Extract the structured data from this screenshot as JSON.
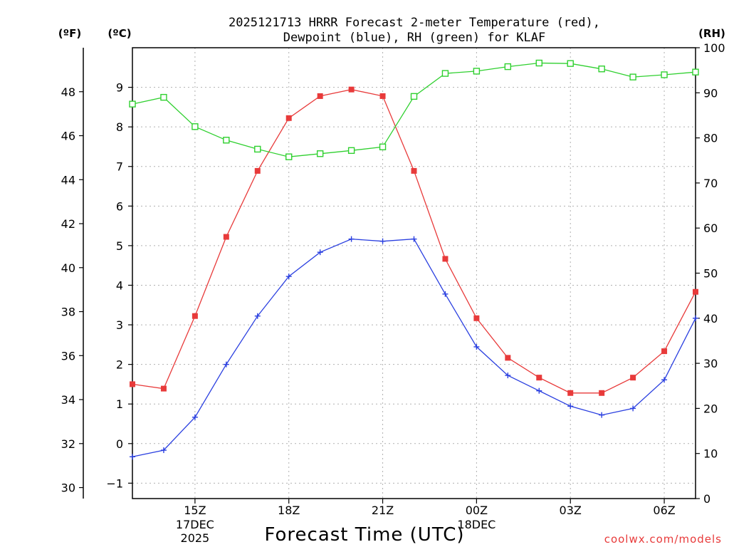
{
  "chart_data": {
    "type": "line",
    "title_line1": "2025121713 HRRR Forecast 2-meter Temperature (red),",
    "title_line2": "Dewpoint (blue), RH (green) for KLAF",
    "xlabel": "Forecast Time (UTC)",
    "watermark": "coolwx.com/models",
    "axis_unit_f": "(ºF)",
    "axis_unit_c": "(ºC)",
    "axis_unit_rh": "(RH)",
    "x_hours": [
      13,
      14,
      15,
      16,
      17,
      18,
      19,
      20,
      21,
      22,
      23,
      24,
      25,
      26,
      27,
      28,
      29,
      30,
      31
    ],
    "xlim": [
      13,
      31
    ],
    "x_ticks": [
      {
        "hour": 15,
        "label": "15Z",
        "sub1": "17DEC",
        "sub2": "2025"
      },
      {
        "hour": 18,
        "label": "18Z"
      },
      {
        "hour": 21,
        "label": "21Z"
      },
      {
        "hour": 24,
        "label": "00Z",
        "sub1": "18DEC"
      },
      {
        "hour": 27,
        "label": "03Z"
      },
      {
        "hour": 30,
        "label": "06Z"
      }
    ],
    "f_axis": {
      "ylim": [
        29.5,
        50.0
      ],
      "ticks": [
        30,
        32,
        34,
        36,
        38,
        40,
        42,
        44,
        46,
        48
      ]
    },
    "c_axis": {
      "ticks": [
        -1,
        0,
        1,
        2,
        3,
        4,
        5,
        6,
        7,
        8,
        9
      ]
    },
    "rh_axis": {
      "ylim": [
        0,
        100
      ],
      "ticks": [
        0,
        10,
        20,
        30,
        40,
        50,
        60,
        70,
        80,
        90,
        100
      ]
    },
    "series": [
      {
        "name": "Temperature (ºF)",
        "axis": "f",
        "color": "#e83a3a",
        "marker": "filled-square",
        "values": [
          34.7,
          34.5,
          37.8,
          41.4,
          44.4,
          46.8,
          47.8,
          48.1,
          47.8,
          44.4,
          40.4,
          37.7,
          35.9,
          35.0,
          34.3,
          34.3,
          35.0,
          36.2,
          38.9
        ]
      },
      {
        "name": "Dewpoint (ºF)",
        "axis": "f",
        "color": "#2a3fe0",
        "marker": "plus",
        "values": [
          31.4,
          31.7,
          33.2,
          35.6,
          37.8,
          39.6,
          40.7,
          41.3,
          41.2,
          41.3,
          38.8,
          36.4,
          35.1,
          34.4,
          33.7,
          33.3,
          33.6,
          34.9,
          37.7
        ]
      },
      {
        "name": "Relative Humidity (%)",
        "axis": "rh",
        "color": "#2fd02f",
        "marker": "open-square",
        "values": [
          87.5,
          89.0,
          82.5,
          79.5,
          77.5,
          75.8,
          76.5,
          77.2,
          78.0,
          89.2,
          94.3,
          94.8,
          95.8,
          96.6,
          96.5,
          95.3,
          93.5,
          94.0,
          94.6
        ]
      }
    ]
  }
}
